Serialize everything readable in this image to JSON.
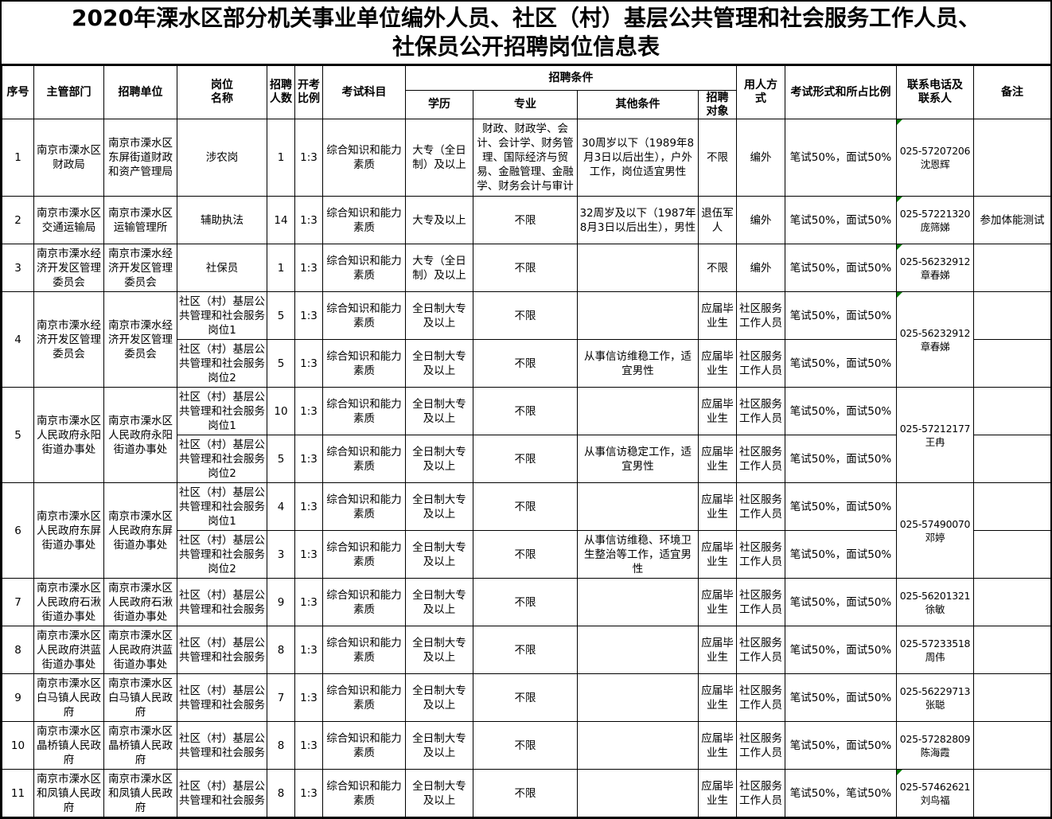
{
  "title": {
    "line1": "2020年溧水区部分机关事业单位编外人员、社区（村）基层公共管理和社会服务工作人员、",
    "line2": "社保员公开招聘岗位信息表"
  },
  "header": {
    "seq": "序号",
    "dept": "主管部门",
    "unit": "招聘单位",
    "pos": "岗位\n名称",
    "num": "招聘\n人数",
    "ratio": "开考\n比例",
    "subject": "考试科目",
    "conditions_group": "招聘条件",
    "edu": "学历",
    "major": "专业",
    "other": "其他条件",
    "target": "招聘\n对象",
    "mode": "用人方\n式",
    "exam": "考试形式和所占比例",
    "contact": "联系电话及\n联系人",
    "note": "备注"
  },
  "colors": {
    "border": "#000000",
    "error_marker_green": "#007b00",
    "background": "#ffffff"
  },
  "rows": [
    {
      "cells": [
        {
          "n": "seq",
          "v": "1"
        },
        {
          "n": "dept",
          "v": "南京市溧水区财政局"
        },
        {
          "n": "unit",
          "v": "南京市溧水区东屏街道财政和资产管理局"
        },
        {
          "n": "pos",
          "v": "涉农岗"
        },
        {
          "n": "num",
          "v": "1"
        },
        {
          "n": "ratio",
          "v": "1:3"
        },
        {
          "n": "subject",
          "v": "综合知识和能力素质"
        },
        {
          "n": "edu",
          "v": "大专（全日制）及以上"
        },
        {
          "n": "major",
          "v": "财政、财政学、会计、会计学、财务管理、国际经济与贸易、金融管理、金融学、财务会计与审计"
        },
        {
          "n": "other",
          "v": "30周岁以下（1989年8月3日以后出生），户外工作，岗位适宜男性"
        },
        {
          "n": "target",
          "v": "不限"
        },
        {
          "n": "mode",
          "v": "编外"
        },
        {
          "n": "exam",
          "v": "笔试50%，面试50%"
        },
        {
          "n": "contact",
          "v": "025-57207206\n沈恩辉",
          "marker": true
        },
        {
          "n": "note",
          "v": ""
        }
      ]
    },
    {
      "cells": [
        {
          "n": "seq",
          "v": "2"
        },
        {
          "n": "dept",
          "v": "南京市溧水区交通运输局"
        },
        {
          "n": "unit",
          "v": "南京市溧水区运输管理所"
        },
        {
          "n": "pos",
          "v": "辅助执法"
        },
        {
          "n": "num",
          "v": "14"
        },
        {
          "n": "ratio",
          "v": "1:3"
        },
        {
          "n": "subject",
          "v": "综合知识和能力素质"
        },
        {
          "n": "edu",
          "v": "大专及以上"
        },
        {
          "n": "major",
          "v": "不限"
        },
        {
          "n": "other",
          "v": "32周岁及以下（1987年8月3日以后出生），男性"
        },
        {
          "n": "target",
          "v": "退伍军人"
        },
        {
          "n": "mode",
          "v": "编外"
        },
        {
          "n": "exam",
          "v": "笔试50%，面试50%"
        },
        {
          "n": "contact",
          "v": "025-57221320\n庞筛娣",
          "marker": true
        },
        {
          "n": "note",
          "v": "参加体能测试"
        }
      ]
    },
    {
      "cells": [
        {
          "n": "seq",
          "v": "3"
        },
        {
          "n": "dept",
          "v": "南京市溧水经济开发区管理委员会"
        },
        {
          "n": "unit",
          "v": "南京市溧水经济开发区管理委员会"
        },
        {
          "n": "pos",
          "v": "社保员"
        },
        {
          "n": "num",
          "v": "1"
        },
        {
          "n": "ratio",
          "v": "1:3"
        },
        {
          "n": "subject",
          "v": "综合知识和能力素质"
        },
        {
          "n": "edu",
          "v": "大专（全日制）及以上"
        },
        {
          "n": "major",
          "v": "不限"
        },
        {
          "n": "other",
          "v": ""
        },
        {
          "n": "target",
          "v": "不限"
        },
        {
          "n": "mode",
          "v": "编外"
        },
        {
          "n": "exam",
          "v": "笔试50%，面试50%"
        },
        {
          "n": "contact",
          "v": "025-56232912\n章春娣",
          "marker": true
        },
        {
          "n": "note",
          "v": ""
        }
      ]
    },
    {
      "cells": [
        {
          "n": "seq",
          "v": "4",
          "rs": 2
        },
        {
          "n": "dept",
          "v": "南京市溧水经济开发区管理委员会",
          "rs": 2
        },
        {
          "n": "unit",
          "v": "南京市溧水经济开发区管理委员会",
          "rs": 2
        },
        {
          "n": "pos",
          "v": "社区（村）基层公共管理和社会服务岗位1"
        },
        {
          "n": "num",
          "v": "5"
        },
        {
          "n": "ratio",
          "v": "1:3"
        },
        {
          "n": "subject",
          "v": "综合知识和能力素质"
        },
        {
          "n": "edu",
          "v": "全日制大专及以上"
        },
        {
          "n": "major",
          "v": "不限"
        },
        {
          "n": "other",
          "v": ""
        },
        {
          "n": "target",
          "v": "应届毕业生"
        },
        {
          "n": "mode",
          "v": "社区服务工作人员"
        },
        {
          "n": "exam",
          "v": "笔试50%，面试50%"
        },
        {
          "n": "contact",
          "v": "025-56232912\n章春娣",
          "rs": 2,
          "marker": true
        },
        {
          "n": "note",
          "v": ""
        }
      ]
    },
    {
      "cells": [
        {
          "n": "pos",
          "v": "社区（村）基层公共管理和社会服务岗位2"
        },
        {
          "n": "num",
          "v": "5"
        },
        {
          "n": "ratio",
          "v": "1:3"
        },
        {
          "n": "subject",
          "v": "综合知识和能力素质"
        },
        {
          "n": "edu",
          "v": "全日制大专及以上"
        },
        {
          "n": "major",
          "v": "不限"
        },
        {
          "n": "other",
          "v": "从事信访维稳工作，适宜男性"
        },
        {
          "n": "target",
          "v": "应届毕业生"
        },
        {
          "n": "mode",
          "v": "社区服务工作人员"
        },
        {
          "n": "exam",
          "v": "笔试50%，面试50%"
        },
        {
          "n": "note",
          "v": ""
        }
      ]
    },
    {
      "cells": [
        {
          "n": "seq",
          "v": "5",
          "rs": 2
        },
        {
          "n": "dept",
          "v": "南京市溧水区人民政府永阳街道办事处",
          "rs": 2
        },
        {
          "n": "unit",
          "v": "南京市溧水区人民政府永阳街道办事处",
          "rs": 2
        },
        {
          "n": "pos",
          "v": "社区（村）基层公共管理和社会服务岗位1"
        },
        {
          "n": "num",
          "v": "10"
        },
        {
          "n": "ratio",
          "v": "1:3"
        },
        {
          "n": "subject",
          "v": "综合知识和能力素质"
        },
        {
          "n": "edu",
          "v": "全日制大专及以上"
        },
        {
          "n": "major",
          "v": "不限"
        },
        {
          "n": "other",
          "v": ""
        },
        {
          "n": "target",
          "v": "应届毕业生"
        },
        {
          "n": "mode",
          "v": "社区服务工作人员"
        },
        {
          "n": "exam",
          "v": "笔试50%，面试50%"
        },
        {
          "n": "contact",
          "v": "025-57212177\n王冉",
          "rs": 2
        },
        {
          "n": "note",
          "v": ""
        }
      ]
    },
    {
      "cells": [
        {
          "n": "pos",
          "v": "社区（村）基层公共管理和社会服务岗位2"
        },
        {
          "n": "num",
          "v": "5"
        },
        {
          "n": "ratio",
          "v": "1:3"
        },
        {
          "n": "subject",
          "v": "综合知识和能力素质"
        },
        {
          "n": "edu",
          "v": "全日制大专及以上"
        },
        {
          "n": "major",
          "v": "不限"
        },
        {
          "n": "other",
          "v": "从事信访稳定工作，适宜男性"
        },
        {
          "n": "target",
          "v": "应届毕业生"
        },
        {
          "n": "mode",
          "v": "社区服务工作人员"
        },
        {
          "n": "exam",
          "v": "笔试50%，面试50%"
        },
        {
          "n": "note",
          "v": ""
        }
      ]
    },
    {
      "cells": [
        {
          "n": "seq",
          "v": "6",
          "rs": 2
        },
        {
          "n": "dept",
          "v": "南京市溧水区人民政府东屏街道办事处",
          "rs": 2
        },
        {
          "n": "unit",
          "v": "南京市溧水区人民政府东屏街道办事处",
          "rs": 2
        },
        {
          "n": "pos",
          "v": "社区（村）基层公共管理和社会服务岗位1"
        },
        {
          "n": "num",
          "v": "4"
        },
        {
          "n": "ratio",
          "v": "1:3"
        },
        {
          "n": "subject",
          "v": "综合知识和能力素质"
        },
        {
          "n": "edu",
          "v": "全日制大专及以上"
        },
        {
          "n": "major",
          "v": "不限"
        },
        {
          "n": "other",
          "v": ""
        },
        {
          "n": "target",
          "v": "应届毕业生"
        },
        {
          "n": "mode",
          "v": "社区服务工作人员"
        },
        {
          "n": "exam",
          "v": "笔试50%，面试50%"
        },
        {
          "n": "contact",
          "v": "025-57490070\n邓婷",
          "rs": 2
        },
        {
          "n": "note",
          "v": ""
        }
      ]
    },
    {
      "cells": [
        {
          "n": "pos",
          "v": "社区（村）基层公共管理和社会服务岗位2"
        },
        {
          "n": "num",
          "v": "3"
        },
        {
          "n": "ratio",
          "v": "1:3"
        },
        {
          "n": "subject",
          "v": "综合知识和能力素质"
        },
        {
          "n": "edu",
          "v": "全日制大专及以上"
        },
        {
          "n": "major",
          "v": "不限"
        },
        {
          "n": "other",
          "v": "从事信访维稳、环境卫生整治等工作，适宜男性"
        },
        {
          "n": "target",
          "v": "应届毕业生"
        },
        {
          "n": "mode",
          "v": "社区服务工作人员"
        },
        {
          "n": "exam",
          "v": "笔试50%，面试50%"
        },
        {
          "n": "note",
          "v": ""
        }
      ]
    },
    {
      "cells": [
        {
          "n": "seq",
          "v": "7"
        },
        {
          "n": "dept",
          "v": "南京市溧水区人民政府石湫街道办事处"
        },
        {
          "n": "unit",
          "v": "南京市溧水区人民政府石湫街道办事处"
        },
        {
          "n": "pos",
          "v": "社区（村）基层公共管理和社会服务"
        },
        {
          "n": "num",
          "v": "9"
        },
        {
          "n": "ratio",
          "v": "1:3"
        },
        {
          "n": "subject",
          "v": "综合知识和能力素质"
        },
        {
          "n": "edu",
          "v": "全日制大专及以上"
        },
        {
          "n": "major",
          "v": "不限"
        },
        {
          "n": "other",
          "v": ""
        },
        {
          "n": "target",
          "v": "应届毕业生"
        },
        {
          "n": "mode",
          "v": "社区服务工作人员"
        },
        {
          "n": "exam",
          "v": "笔试50%，面试50%"
        },
        {
          "n": "contact",
          "v": "025-56201321\n徐敏"
        },
        {
          "n": "note",
          "v": ""
        }
      ]
    },
    {
      "cells": [
        {
          "n": "seq",
          "v": "8"
        },
        {
          "n": "dept",
          "v": "南京市溧水区人民政府洪蓝街道办事处"
        },
        {
          "n": "unit",
          "v": "南京市溧水区人民政府洪蓝街道办事处"
        },
        {
          "n": "pos",
          "v": "社区（村）基层公共管理和社会服务"
        },
        {
          "n": "num",
          "v": "8"
        },
        {
          "n": "ratio",
          "v": "1:3"
        },
        {
          "n": "subject",
          "v": "综合知识和能力素质"
        },
        {
          "n": "edu",
          "v": "全日制大专及以上"
        },
        {
          "n": "major",
          "v": "不限"
        },
        {
          "n": "other",
          "v": ""
        },
        {
          "n": "target",
          "v": "应届毕业生"
        },
        {
          "n": "mode",
          "v": "社区服务工作人员"
        },
        {
          "n": "exam",
          "v": "笔试50%，面试50%"
        },
        {
          "n": "contact",
          "v": "025-57233518\n周伟"
        },
        {
          "n": "note",
          "v": ""
        }
      ]
    },
    {
      "cells": [
        {
          "n": "seq",
          "v": "9"
        },
        {
          "n": "dept",
          "v": "南京市溧水区白马镇人民政府"
        },
        {
          "n": "unit",
          "v": "南京市溧水区白马镇人民政府"
        },
        {
          "n": "pos",
          "v": "社区（村）基层公共管理和社会服务"
        },
        {
          "n": "num",
          "v": "7"
        },
        {
          "n": "ratio",
          "v": "1:3"
        },
        {
          "n": "subject",
          "v": "综合知识和能力素质"
        },
        {
          "n": "edu",
          "v": "全日制大专及以上"
        },
        {
          "n": "major",
          "v": "不限"
        },
        {
          "n": "other",
          "v": ""
        },
        {
          "n": "target",
          "v": "应届毕业生"
        },
        {
          "n": "mode",
          "v": "社区服务工作人员"
        },
        {
          "n": "exam",
          "v": "笔试50%，面试50%"
        },
        {
          "n": "contact",
          "v": "025-56229713\n张聪"
        },
        {
          "n": "note",
          "v": ""
        }
      ]
    },
    {
      "cells": [
        {
          "n": "seq",
          "v": "10"
        },
        {
          "n": "dept",
          "v": "南京市溧水区晶桥镇人民政府"
        },
        {
          "n": "unit",
          "v": "南京市溧水区晶桥镇人民政府"
        },
        {
          "n": "pos",
          "v": "社区（村）基层公共管理和社会服务"
        },
        {
          "n": "num",
          "v": "8"
        },
        {
          "n": "ratio",
          "v": "1:3"
        },
        {
          "n": "subject",
          "v": "综合知识和能力素质"
        },
        {
          "n": "edu",
          "v": "全日制大专及以上"
        },
        {
          "n": "major",
          "v": "不限"
        },
        {
          "n": "other",
          "v": ""
        },
        {
          "n": "target",
          "v": "应届毕业生"
        },
        {
          "n": "mode",
          "v": "社区服务工作人员"
        },
        {
          "n": "exam",
          "v": "笔试50%，面试50%"
        },
        {
          "n": "contact",
          "v": "025-57282809\n陈海霞"
        },
        {
          "n": "note",
          "v": ""
        }
      ]
    },
    {
      "cells": [
        {
          "n": "seq",
          "v": "11"
        },
        {
          "n": "dept",
          "v": "南京市溧水区和凤镇人民政府"
        },
        {
          "n": "unit",
          "v": "南京市溧水区和凤镇人民政府"
        },
        {
          "n": "pos",
          "v": "社区（村）基层公共管理和社会服务"
        },
        {
          "n": "num",
          "v": "8"
        },
        {
          "n": "ratio",
          "v": "1:3"
        },
        {
          "n": "subject",
          "v": "综合知识和能力素质"
        },
        {
          "n": "edu",
          "v": "全日制大专及以上"
        },
        {
          "n": "major",
          "v": "不限"
        },
        {
          "n": "other",
          "v": ""
        },
        {
          "n": "target",
          "v": "应届毕业生"
        },
        {
          "n": "mode",
          "v": "社区服务工作人员"
        },
        {
          "n": "exam",
          "v": "笔试50%，笔试50%"
        },
        {
          "n": "contact",
          "v": "025-57462621\n刘鸟福",
          "marker": true
        },
        {
          "n": "note",
          "v": ""
        }
      ]
    }
  ]
}
